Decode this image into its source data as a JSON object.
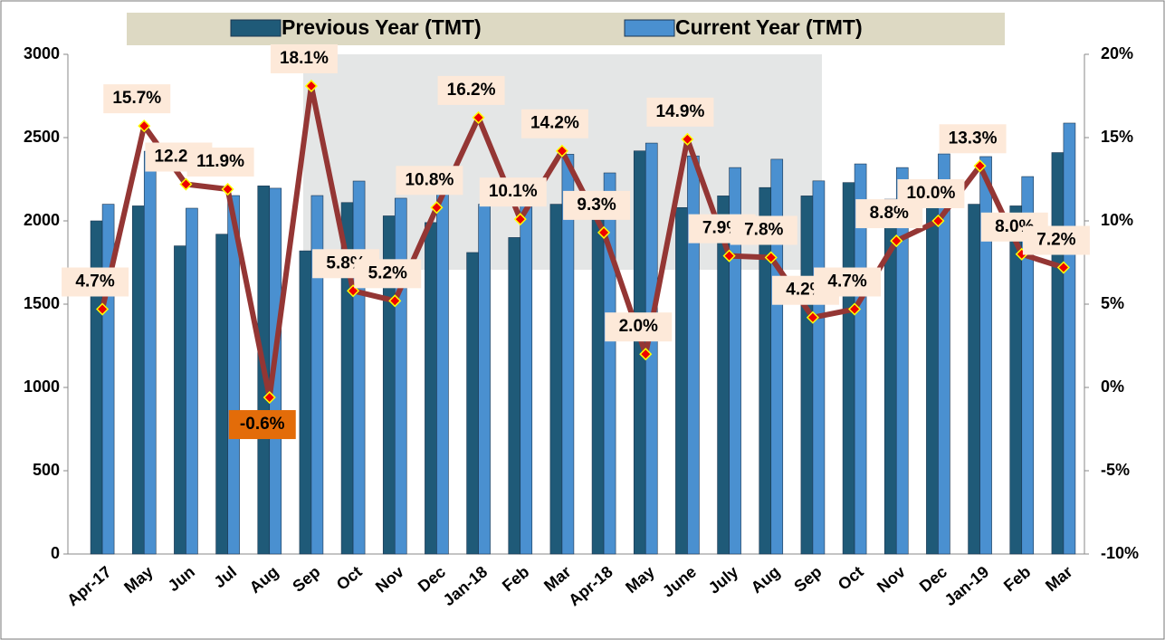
{
  "chart_data": {
    "type": "bar",
    "categories": [
      "Apr-17",
      "May",
      "Jun",
      "Jul",
      "Aug",
      "Sep",
      "Oct",
      "Nov",
      "Dec",
      "Jan-18",
      "Feb",
      "Mar",
      "Apr-18",
      "May",
      "June",
      "July",
      "Aug",
      "Sep",
      "Oct",
      "Nov",
      "Dec",
      "Jan-19",
      "Feb",
      "Mar"
    ],
    "series": [
      {
        "name": "Previous Year (TMT)",
        "type": "bar",
        "color": "#1f5a78",
        "values": [
          2000,
          2090,
          1850,
          1920,
          2210,
          1820,
          2110,
          2030,
          1990,
          1810,
          1900,
          2100,
          2094,
          2420,
          2080,
          2150,
          2200,
          2150,
          2230,
          2130,
          2180,
          2100,
          2090,
          2410
        ]
      },
      {
        "name": "Current Year (TMT)",
        "type": "bar",
        "color": "#4a90d0",
        "values": [
          2100,
          2418,
          2076,
          2152,
          2196,
          2152,
          2239,
          2136,
          2205,
          2100,
          2090,
          2400,
          2288,
          2467,
          2390,
          2320,
          2370,
          2240,
          2342,
          2320,
          2402,
          2386,
          2266,
          2587
        ]
      },
      {
        "type": "line",
        "axis": "y2",
        "color": "#943634",
        "values": [
          4.7,
          15.7,
          12.2,
          11.9,
          -0.6,
          18.1,
          5.8,
          5.2,
          10.8,
          16.2,
          10.1,
          14.2,
          9.3,
          2.0,
          14.9,
          7.9,
          7.8,
          4.2,
          4.7,
          8.8,
          10.0,
          13.3,
          8.0,
          7.2
        ],
        "value_labels": [
          "4.7%",
          "15.7%",
          "12.2%",
          "11.9%",
          "-0.6%",
          "18.1%",
          "5.8%",
          "5.2%",
          "10.8%",
          "16.2%",
          "10.1%",
          "14.2%",
          "9.3%",
          "2.0%",
          "14.9%",
          "7.9%",
          "7.8%",
          "4.2%",
          "4.7%",
          "8.8%",
          "10.0%",
          "13.3%",
          "8.0%",
          "7.2%"
        ]
      }
    ],
    "ylim": [
      0,
      3000
    ],
    "yticks": [
      0,
      500,
      1000,
      1500,
      2000,
      2500,
      3000
    ],
    "y2lim": [
      -10,
      20
    ],
    "y2ticks": [
      {
        "value": -10,
        "label": "-10%"
      },
      {
        "value": -5,
        "label": "-5%"
      },
      {
        "value": 0,
        "label": "0%"
      },
      {
        "value": 5,
        "label": "5%"
      },
      {
        "value": 10,
        "label": "10%"
      },
      {
        "value": 15,
        "label": "15%"
      },
      {
        "value": 20,
        "label": "20%"
      }
    ],
    "legend": "top"
  }
}
